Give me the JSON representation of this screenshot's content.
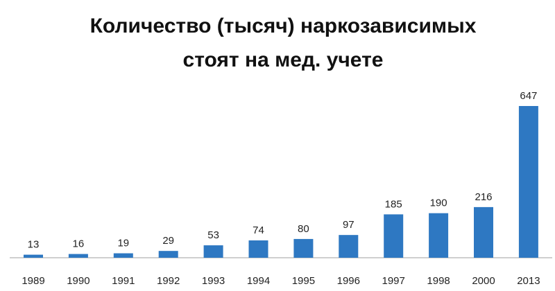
{
  "chart_data": {
    "type": "bar",
    "title": [
      "Количество (тысяч) наркозависимых",
      "стоят на мед. учете"
    ],
    "categories": [
      "1989",
      "1990",
      "1991",
      "1992",
      "1993",
      "1994",
      "1995",
      "1996",
      "1997",
      "1998",
      "2000",
      "2013"
    ],
    "values": [
      13,
      16,
      19,
      29,
      53,
      74,
      80,
      97,
      185,
      190,
      216,
      647
    ],
    "color": "#2e78c2"
  }
}
